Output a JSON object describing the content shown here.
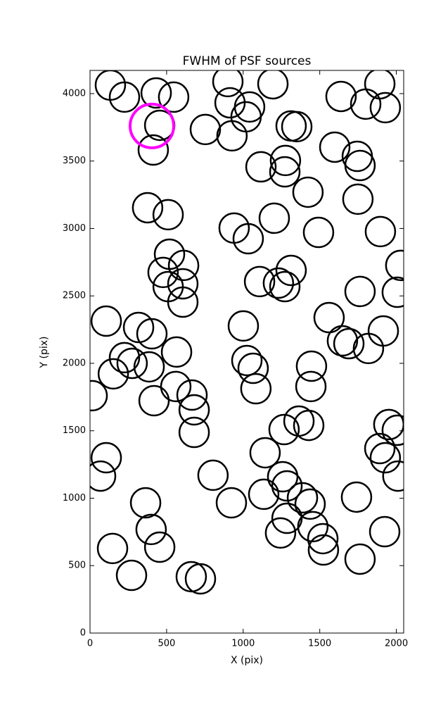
{
  "chart_data": {
    "type": "scatter",
    "title": "FWHM of PSF sources",
    "xlabel": "X (pix)",
    "ylabel": "Y (pix)",
    "xlim": [
      0,
      2048
    ],
    "ylim": [
      0,
      4172
    ],
    "xticks": [
      0,
      500,
      1000,
      1500,
      2000
    ],
    "yticks": [
      0,
      500,
      1000,
      1500,
      2000,
      2500,
      3000,
      3500,
      4000
    ],
    "grid": false,
    "series": [
      {
        "color": "#000000",
        "x": [
          133,
          225,
          432,
          546,
          900,
          914,
          1042,
          1019,
          1194,
          927,
          753,
          455,
          413,
          1639,
          1800,
          1892,
          1928,
          1313,
          1350,
          1116,
          1276,
          1272,
          1598,
          1745,
          1763,
          1423,
          1749,
          376,
          510,
          941,
          1033,
          1203,
          1492,
          1896,
          2029,
          2006,
          1763,
          519,
          611,
          477,
          510,
          606,
          606,
          1107,
          1230,
          1272,
          1313,
          106,
          317,
          404,
          225,
          275,
          386,
          152,
          565,
          14,
          418,
          560,
          666,
          680,
          680,
          1001,
          1024,
          1065,
          1083,
          1561,
          1648,
          1690,
          1818,
          1915,
          1446,
          1442,
          1364,
          1428,
          1267,
          1951,
          2006,
          1892,
          1928,
          2010,
          1143,
          1258,
          1286,
          1134,
          1387,
          1437,
          1286,
          1244,
          1455,
          1520,
          1524,
          1740,
          1924,
          1763,
          803,
          923,
          106,
          69,
          363,
          399,
          455,
          147,
          271,
          661,
          721
        ],
        "y": [
          4063,
          3974,
          4005,
          3974,
          4089,
          3932,
          3901,
          3828,
          4073,
          3687,
          3734,
          3765,
          3582,
          3979,
          3922,
          4073,
          3896,
          3760,
          3755,
          3457,
          3504,
          3420,
          3603,
          3535,
          3467,
          3269,
          3217,
          3154,
          3102,
          3003,
          2924,
          3076,
          2971,
          2977,
          2726,
          2527,
          2533,
          2809,
          2726,
          2674,
          2569,
          2590,
          2454,
          2606,
          2595,
          2569,
          2689,
          2313,
          2266,
          2219,
          2042,
          2000,
          1974,
          1922,
          2084,
          1760,
          1723,
          1828,
          1765,
          1655,
          1488,
          2277,
          2021,
          1963,
          1812,
          2339,
          2167,
          2146,
          2110,
          2240,
          1979,
          1828,
          1572,
          1540,
          1509,
          1546,
          1504,
          1368,
          1300,
          1164,
          1337,
          1159,
          1091,
          1029,
          1003,
          956,
          851,
          742,
          789,
          700,
          616,
          1008,
          752,
          548,
          1170,
          966,
          1300,
          1164,
          966,
          768,
          637,
          627,
          428,
          418,
          402
        ]
      },
      {
        "color": "#ff00ff",
        "x": [
          404
        ],
        "y": [
          3760
        ]
      }
    ]
  }
}
